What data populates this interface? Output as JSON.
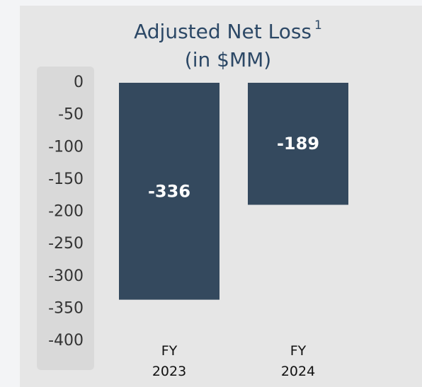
{
  "chart_data": {
    "type": "bar",
    "title": "Adjusted Net Loss",
    "title_note": "1",
    "subtitle": "(in $MM)",
    "categories": [
      "FY 2023",
      "FY 2024"
    ],
    "values": [
      -336,
      -189
    ],
    "color": "#34495e",
    "ylim": [
      -400,
      0
    ],
    "yticks": [
      0,
      -50,
      -100,
      -150,
      -200,
      -250,
      -300,
      -350,
      -400
    ],
    "grid": false
  }
}
